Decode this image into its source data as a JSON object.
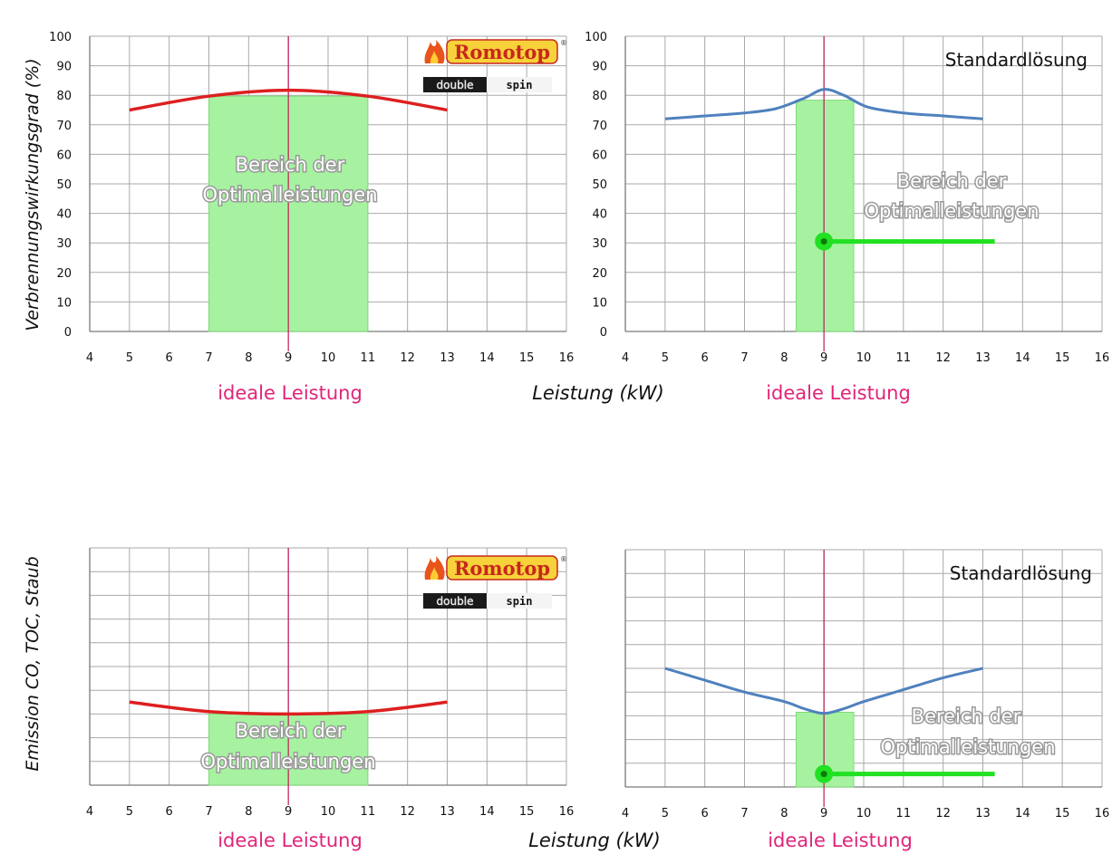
{
  "y_axis_label_top": "Verbrennungswirkungsgrad  (%)",
  "y_axis_label_bottom": "Emission CO, TOC, Staub",
  "x_axis_label": "Leistung (kW)",
  "ideal_label": "ideale Leistung",
  "band_label_line1": "Bereich der",
  "band_label_line2": "Optimalleistungen",
  "standard_label": "Standardlösung",
  "logo": {
    "brand": "Romotop",
    "registered": "®",
    "sub_left": "double",
    "sub_right": "spin"
  },
  "colors": {
    "romotop_curve": "#dd1f1f",
    "standard_curve": "#4f81bd",
    "band": "#a6f2a0",
    "ideal_line": "#c0185a",
    "marker": "#22e022",
    "ideal_text": "#e0247a"
  },
  "chart_data": [
    {
      "id": "efficiency-romotop",
      "type": "line",
      "ylabel": "Verbrennungswirkungsgrad  (%)",
      "xlim": [
        4,
        16
      ],
      "ylim": [
        0,
        100
      ],
      "x_ticks": [
        4,
        5,
        6,
        7,
        8,
        9,
        10,
        11,
        12,
        13,
        14,
        15,
        16
      ],
      "y_ticks": [
        0,
        10,
        20,
        30,
        40,
        50,
        60,
        70,
        80,
        90,
        100
      ],
      "grid": true,
      "x": [
        5,
        7,
        9,
        11,
        13
      ],
      "y": [
        75,
        79.7,
        81.7,
        79.7,
        75
      ],
      "band": [
        7,
        11
      ],
      "ideal_x": 9,
      "logo": true
    },
    {
      "id": "efficiency-standard",
      "type": "line",
      "xlabel": "Leistung (kW)",
      "xlim": [
        4,
        16
      ],
      "ylim": [
        0,
        100
      ],
      "x_ticks": [
        4,
        5,
        6,
        7,
        8,
        9,
        10,
        11,
        12,
        13,
        14,
        15,
        16
      ],
      "y_ticks": [
        0,
        10,
        20,
        30,
        40,
        50,
        60,
        70,
        80,
        90,
        100
      ],
      "grid": true,
      "x": [
        5,
        6,
        7,
        7.8,
        8.5,
        9,
        9.5,
        10.1,
        11,
        12,
        13
      ],
      "y": [
        72,
        73,
        74,
        75.5,
        79,
        82,
        80,
        76,
        74,
        73,
        72
      ],
      "band": [
        8.3,
        9.75
      ],
      "ideal_x": 9,
      "marker": {
        "x": 9,
        "y": 30.5,
        "line_to_x": 13.3
      },
      "annotation": "Standardlösung"
    },
    {
      "id": "emission-romotop",
      "type": "line",
      "ylabel": "Emission CO, TOC, Staub",
      "xlim": [
        4,
        16
      ],
      "ylim": [
        0,
        10
      ],
      "x_ticks": [
        4,
        5,
        6,
        7,
        8,
        9,
        10,
        11,
        12,
        13,
        14,
        15,
        16
      ],
      "y_tick_labels": false,
      "grid": true,
      "x": [
        5,
        7,
        9,
        11,
        13
      ],
      "y": [
        3.5,
        3.1,
        3.0,
        3.1,
        3.5
      ],
      "band": [
        7,
        11
      ],
      "band_top": 3.0,
      "ideal_x": 9,
      "logo": true
    },
    {
      "id": "emission-standard",
      "type": "line",
      "xlabel": "Leistung (kW)",
      "xlim": [
        4,
        16
      ],
      "ylim": [
        0,
        10
      ],
      "x_ticks": [
        4,
        5,
        6,
        7,
        8,
        9,
        10,
        11,
        12,
        13,
        14,
        15,
        16
      ],
      "y_tick_labels": false,
      "grid": true,
      "x": [
        5,
        6,
        7,
        8,
        8.5,
        9,
        9.5,
        10,
        11,
        12,
        13
      ],
      "y": [
        5.0,
        4.5,
        4.0,
        3.6,
        3.3,
        3.1,
        3.3,
        3.6,
        4.1,
        4.6,
        5.0
      ],
      "band": [
        8.3,
        9.75
      ],
      "band_top": 3.15,
      "ideal_x": 9,
      "marker": {
        "x": 9,
        "y": 0.55,
        "line_to_x": 13.3
      },
      "annotation": "Standardlösung"
    }
  ]
}
